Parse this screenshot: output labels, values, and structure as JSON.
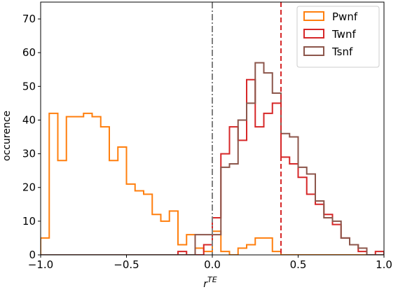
{
  "chart_data": {
    "type": "histogram",
    "xlabel_base": "r",
    "xlabel_sup": "TE",
    "ylabel": "occurence",
    "xlim": [
      -1.0,
      1.0
    ],
    "ylim": [
      0,
      75
    ],
    "xticks": [
      -1.0,
      -0.5,
      0.0,
      0.5,
      1.0
    ],
    "xtick_labels": [
      "−1.0",
      "−0.5",
      "0.0",
      "0.5",
      "1.0"
    ],
    "yticks": [
      0,
      10,
      20,
      30,
      40,
      50,
      60,
      70
    ],
    "ytick_labels": [
      "0",
      "10",
      "20",
      "30",
      "40",
      "50",
      "60",
      "70"
    ],
    "bin_edges": [
      -1.0,
      -0.95,
      -0.9,
      -0.85,
      -0.8,
      -0.75,
      -0.7,
      -0.65,
      -0.6,
      -0.55,
      -0.5,
      -0.45,
      -0.4,
      -0.35,
      -0.3,
      -0.25,
      -0.2,
      -0.15,
      -0.1,
      -0.05,
      0.0,
      0.05,
      0.1,
      0.15,
      0.2,
      0.25,
      0.3,
      0.35,
      0.4,
      0.45,
      0.5,
      0.55,
      0.6,
      0.65,
      0.7,
      0.75,
      0.8,
      0.85,
      0.9,
      0.95,
      1.0
    ],
    "series": [
      {
        "name": "Pwnf",
        "color": "#ff7f0e",
        "counts": [
          5,
          42,
          28,
          41,
          41,
          42,
          41,
          38,
          28,
          32,
          21,
          19,
          18,
          12,
          10,
          13,
          3,
          6,
          2,
          1,
          7,
          1,
          0,
          2,
          3,
          5,
          5,
          1,
          0,
          0,
          0,
          0,
          0,
          0,
          0,
          0,
          0,
          0,
          0,
          0
        ]
      },
      {
        "name": "Twnf",
        "color": "#d62728",
        "counts": [
          0,
          0,
          0,
          0,
          0,
          0,
          0,
          0,
          0,
          0,
          0,
          0,
          0,
          0,
          0,
          0,
          1,
          0,
          0,
          3,
          11,
          30,
          38,
          34,
          52,
          38,
          42,
          45,
          29,
          27,
          23,
          18,
          15,
          12,
          9,
          5,
          3,
          1,
          0,
          1
        ]
      },
      {
        "name": "Tsnf",
        "color": "#8c564b",
        "counts": [
          0,
          0,
          0,
          0,
          0,
          0,
          0,
          0,
          0,
          0,
          0,
          0,
          0,
          0,
          0,
          0,
          0,
          0,
          6,
          6,
          6,
          26,
          27,
          40,
          45,
          57,
          54,
          48,
          36,
          35,
          26,
          24,
          16,
          11,
          10,
          5,
          3,
          2,
          0,
          0
        ]
      }
    ],
    "reference_lines": [
      {
        "x": 0.0,
        "color": "#7f7f7f",
        "style": "dashdot"
      },
      {
        "x": 0.4,
        "color": "#d62728",
        "style": "dashed"
      }
    ],
    "legend_position": "top-right"
  }
}
